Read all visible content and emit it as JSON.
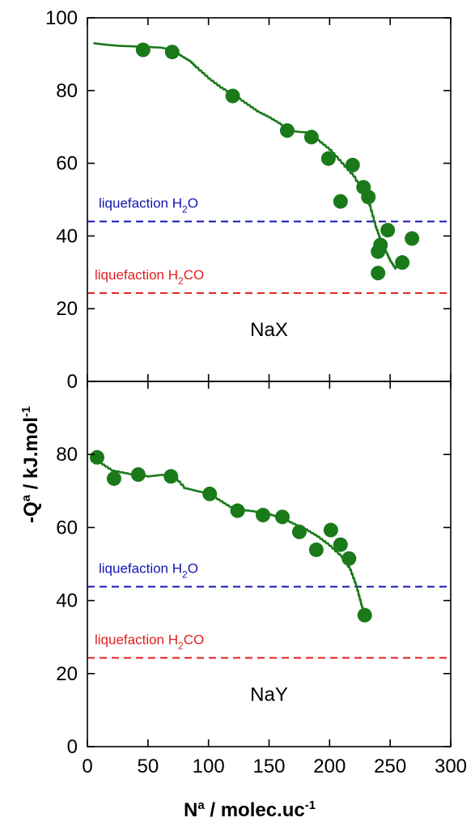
{
  "colors": {
    "series": "#1a7a1a",
    "marker": "#1a7a1a",
    "water_line": "#1414b4",
    "formaldehyde_line": "#e01e1e",
    "axis": "#000000"
  },
  "chart_data": [
    {
      "panel": "NaX",
      "type": "scatter",
      "panel_label": "NaX",
      "xlim": [
        0,
        300
      ],
      "ylim": [
        0,
        100
      ],
      "x_ticks": [
        0,
        50,
        100,
        150,
        200,
        250,
        300
      ],
      "y_ticks": [
        0,
        20,
        40,
        60,
        80,
        100
      ],
      "y_tick_labels": [
        "0",
        "20",
        "40",
        "60",
        "80",
        "100"
      ],
      "points": [
        {
          "x": 46,
          "y": 91.2
        },
        {
          "x": 70,
          "y": 90.6
        },
        {
          "x": 120,
          "y": 78.5
        },
        {
          "x": 165,
          "y": 69.0
        },
        {
          "x": 185,
          "y": 67.2
        },
        {
          "x": 199,
          "y": 61.3
        },
        {
          "x": 209,
          "y": 49.5
        },
        {
          "x": 219,
          "y": 59.5
        },
        {
          "x": 228,
          "y": 53.4
        },
        {
          "x": 232,
          "y": 50.7
        },
        {
          "x": 242,
          "y": 37.5
        },
        {
          "x": 240,
          "y": 35.7
        },
        {
          "x": 240,
          "y": 29.8
        },
        {
          "x": 248,
          "y": 41.6
        },
        {
          "x": 260,
          "y": 32.7
        },
        {
          "x": 268,
          "y": 39.3
        }
      ],
      "curve": [
        [
          5,
          93.0
        ],
        [
          15,
          92.6
        ],
        [
          25,
          92.3
        ],
        [
          40,
          92.1
        ],
        [
          60,
          91.8
        ],
        [
          70,
          91.2
        ],
        [
          75,
          90.0
        ],
        [
          80,
          89.0
        ],
        [
          85,
          88.0
        ],
        [
          90,
          86.3
        ],
        [
          100,
          83.3
        ],
        [
          110,
          80.8
        ],
        [
          120,
          78.9
        ],
        [
          130,
          76.6
        ],
        [
          140,
          74.3
        ],
        [
          150,
          72.6
        ],
        [
          160,
          70.6
        ],
        [
          165,
          69.0
        ],
        [
          175,
          68.6
        ],
        [
          185,
          68.4
        ],
        [
          190,
          66.4
        ],
        [
          200,
          63.7
        ],
        [
          210,
          60.0
        ],
        [
          220,
          56.3
        ],
        [
          228,
          51.5
        ],
        [
          233,
          48.4
        ],
        [
          238,
          42.5
        ],
        [
          242,
          38.9
        ],
        [
          246,
          36.0
        ],
        [
          250,
          33.2
        ],
        [
          254,
          31.1
        ],
        [
          258,
          32.7
        ]
      ],
      "reference_lines": [
        {
          "name": "water",
          "label_main": "liquefaction H",
          "label_sub": "2",
          "label_end": "O",
          "y": 44.0
        },
        {
          "name": "formaldehyde",
          "label_main": "liquefaction H",
          "label_sub": "2",
          "label_end": "CO",
          "y": 24.3
        }
      ]
    },
    {
      "panel": "NaY",
      "type": "scatter",
      "panel_label": "NaY",
      "xlim": [
        0,
        300
      ],
      "ylim": [
        0,
        100
      ],
      "x_ticks": [
        0,
        50,
        100,
        150,
        200,
        250,
        300
      ],
      "x_tick_labels": [
        "0",
        "50",
        "100",
        "150",
        "200",
        "250",
        "300"
      ],
      "y_ticks": [
        0,
        20,
        40,
        60,
        80
      ],
      "y_tick_labels": [
        "0",
        "20",
        "40",
        "60",
        "80"
      ],
      "points": [
        {
          "x": 8,
          "y": 79.2
        },
        {
          "x": 22,
          "y": 73.4
        },
        {
          "x": 42,
          "y": 74.5
        },
        {
          "x": 69,
          "y": 74.0
        },
        {
          "x": 101,
          "y": 69.2
        },
        {
          "x": 124,
          "y": 64.6
        },
        {
          "x": 145,
          "y": 63.4
        },
        {
          "x": 161,
          "y": 62.9
        },
        {
          "x": 175,
          "y": 58.8
        },
        {
          "x": 189,
          "y": 53.9
        },
        {
          "x": 201,
          "y": 59.3
        },
        {
          "x": 209,
          "y": 55.3
        },
        {
          "x": 216,
          "y": 51.5
        },
        {
          "x": 229,
          "y": 36.0
        }
      ],
      "curve": [
        [
          3,
          79.8
        ],
        [
          10,
          77.8
        ],
        [
          20,
          75.6
        ],
        [
          35,
          74.6
        ],
        [
          50,
          74.0
        ],
        [
          60,
          74.4
        ],
        [
          70,
          74.4
        ],
        [
          80,
          70.8
        ],
        [
          90,
          70.0
        ],
        [
          100,
          69.2
        ],
        [
          110,
          67.2
        ],
        [
          120,
          65.1
        ],
        [
          135,
          64.5
        ],
        [
          150,
          63.6
        ],
        [
          160,
          62.6
        ],
        [
          170,
          61.0
        ],
        [
          180,
          59.5
        ],
        [
          190,
          57.5
        ],
        [
          200,
          55.0
        ],
        [
          210,
          51.9
        ],
        [
          217,
          48.4
        ],
        [
          222,
          43.9
        ],
        [
          226,
          39.0
        ],
        [
          229,
          36.0
        ]
      ],
      "reference_lines": [
        {
          "name": "water",
          "label_main": "liquefaction H",
          "label_sub": "2",
          "label_end": "O",
          "y": 43.8
        },
        {
          "name": "formaldehyde",
          "label_main": "liquefaction H",
          "label_sub": "2",
          "label_end": "CO",
          "y": 24.3
        }
      ]
    }
  ],
  "axes": {
    "ylabel_main": "-Q",
    "ylabel_sup": "a",
    "ylabel_rest": " / kJ.mol",
    "ylabel_sup2": "-1",
    "xlabel_main": "N",
    "xlabel_sup": "a",
    "xlabel_rest": " / molec.uc",
    "xlabel_sup2": "-1"
  }
}
